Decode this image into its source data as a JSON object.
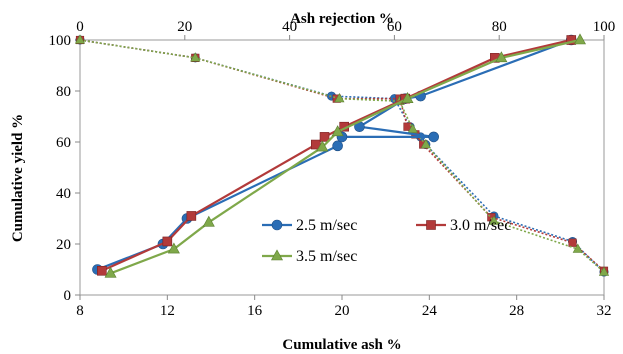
{
  "chart_data": {
    "type": "line",
    "title": "",
    "xlabel": "Cumulative ash %",
    "ylabel": "Cumulative yield %",
    "x2label": "Ash rejection %",
    "xlim": [
      8,
      32
    ],
    "x2lim": [
      0,
      100
    ],
    "ylim": [
      0,
      100
    ],
    "xticks": [
      "8",
      "12",
      "16",
      "20",
      "24",
      "28",
      "32"
    ],
    "x2ticks": [
      "0",
      "20",
      "40",
      "60",
      "80",
      "100"
    ],
    "yticks": [
      "0",
      "20",
      "40",
      "60",
      "80",
      "100"
    ],
    "grid": false,
    "legend_position": "center",
    "series": [
      {
        "name": "2.5 m/sec",
        "color": "#2a6db5",
        "marker": "circle",
        "x": [
          8.8,
          11.8,
          12.9,
          19.8,
          20.0,
          20.8,
          22.9,
          23.6,
          24.2,
          30.5
        ],
        "y": [
          10,
          20,
          30,
          58.5,
          62,
          66,
          77,
          78,
          62,
          100
        ],
        "reject_x": [
          0,
          22,
          48,
          60,
          63,
          65,
          66,
          79,
          94,
          100
        ],
        "reject_y": [
          100,
          93,
          78,
          77,
          66,
          62,
          59,
          31,
          21,
          9
        ]
      },
      {
        "name": "3.0 m/sec",
        "color": "#b23a3a",
        "marker": "square",
        "x": [
          9.0,
          12.0,
          13.1,
          18.8,
          19.2,
          20.1,
          22.9,
          27.0,
          30.5
        ],
        "y": [
          9.5,
          21,
          31,
          59,
          62,
          66,
          77,
          93,
          100
        ],
        "reject_x": [
          0,
          22,
          49,
          61,
          62.5,
          64,
          65.5,
          78.5,
          94,
          100
        ],
        "reject_y": [
          100,
          93,
          77,
          77,
          66,
          63,
          59,
          30.5,
          20.5,
          9.5
        ]
      },
      {
        "name": "3.5 m/sec",
        "color": "#7fa84a",
        "marker": "triangle",
        "x": [
          9.4,
          12.3,
          13.9,
          19.1,
          19.8,
          23.0,
          27.3,
          30.9
        ],
        "y": [
          8.5,
          18,
          28.5,
          58,
          64,
          77,
          93,
          100
        ],
        "reject_x": [
          0,
          22,
          49.5,
          61,
          63.5,
          66,
          79,
          95,
          100
        ],
        "reject_y": [
          100,
          93,
          77,
          76,
          65,
          59,
          29,
          18,
          9
        ]
      }
    ]
  }
}
